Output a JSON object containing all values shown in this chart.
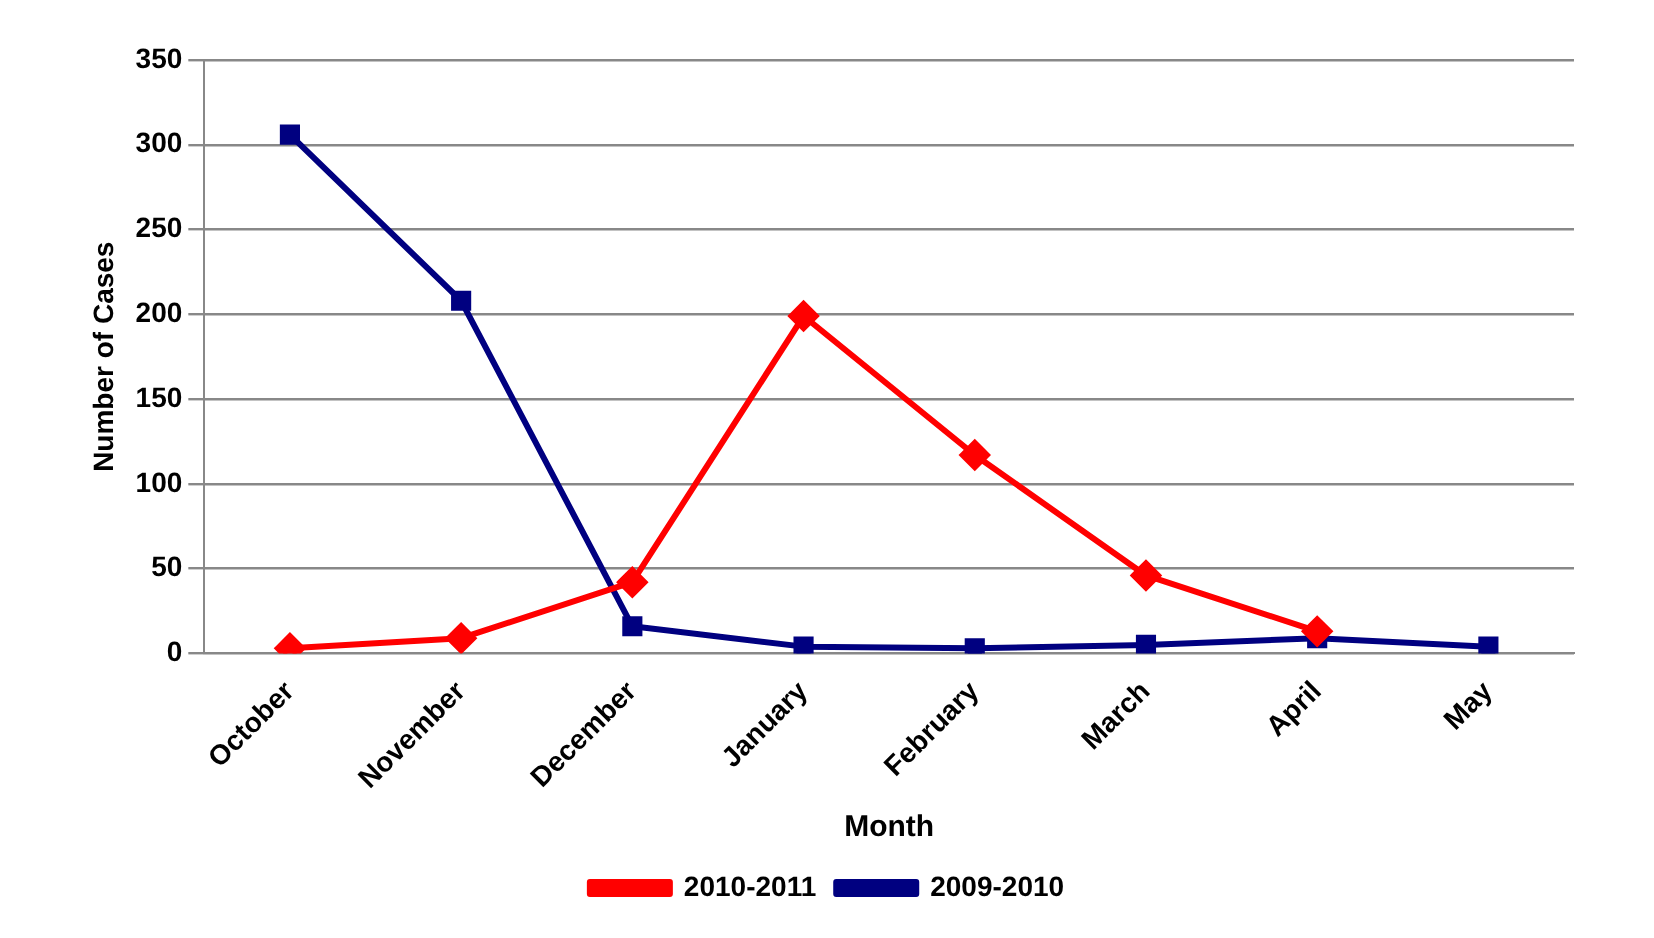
{
  "chart_data": {
    "type": "line",
    "xlabel": "Month",
    "ylabel": "Number of Cases",
    "categories": [
      "October",
      "November",
      "December",
      "January",
      "February",
      "March",
      "April",
      "May"
    ],
    "series": [
      {
        "name": "2009-2010",
        "color": "#000080",
        "marker": "square",
        "values": [
          306,
          208,
          16,
          4,
          3,
          5,
          9,
          4
        ]
      },
      {
        "name": "2010-2011",
        "color": "#ff0000",
        "marker": "diamond",
        "values": [
          3,
          9,
          42,
          199,
          117,
          46,
          13,
          null
        ]
      }
    ],
    "ylim": [
      0,
      350
    ],
    "yticks": [
      0,
      50,
      100,
      150,
      200,
      250,
      300,
      350
    ],
    "grid": "y",
    "legend": "bottom",
    "line_style": "solid"
  }
}
